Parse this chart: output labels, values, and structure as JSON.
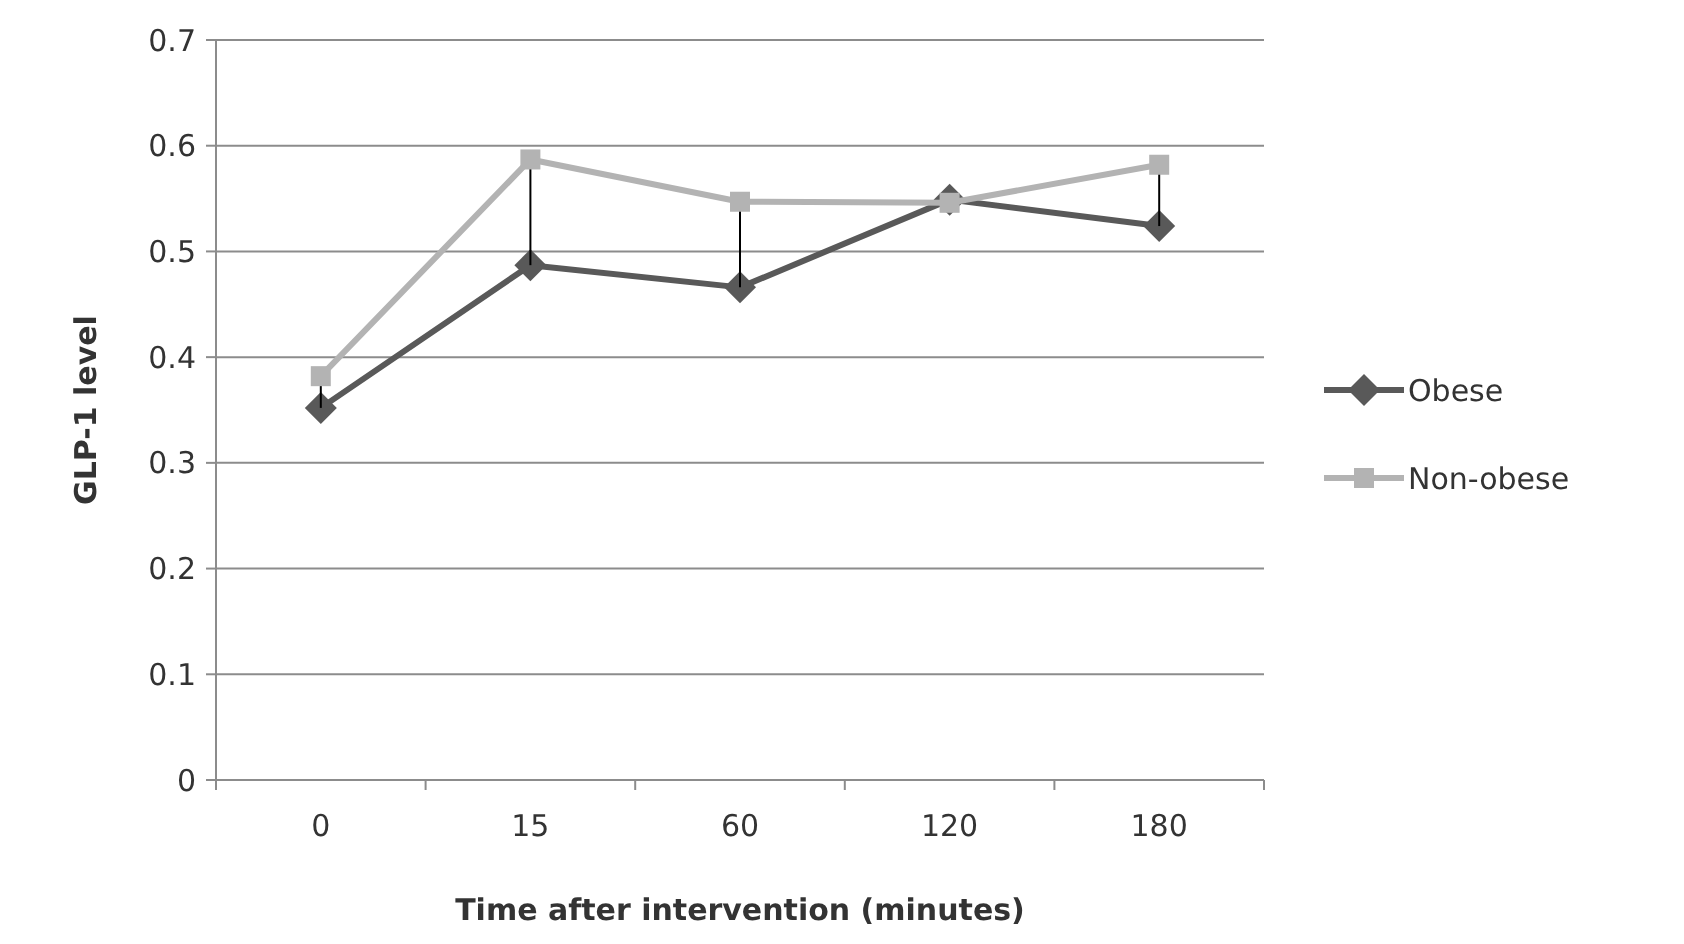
{
  "chart_data": {
    "type": "line",
    "xlabel": "Time after intervention (minutes)",
    "ylabel": "GLP-1 level",
    "categories": [
      "0",
      "15",
      "60",
      "120",
      "180"
    ],
    "series": [
      {
        "name": "Obese",
        "color": "#595959",
        "marker": "diamond",
        "values": [
          0.352,
          0.487,
          0.466,
          0.549,
          0.524
        ]
      },
      {
        "name": "Non-obese",
        "color": "#b3b3b3",
        "marker": "square",
        "values": [
          0.382,
          0.587,
          0.547,
          0.546,
          0.582
        ],
        "errors": [
          [
            0.352,
            0.382
          ],
          [
            0.487,
            0.587
          ],
          [
            0.466,
            0.547
          ],
          null,
          [
            0.524,
            0.582
          ]
        ]
      }
    ],
    "ylim": [
      0,
      0.7
    ],
    "yticks": [
      0,
      0.1,
      0.2,
      0.3,
      0.4,
      0.5,
      0.6,
      0.7
    ],
    "grid": "y",
    "legend": "right",
    "line_style": "solid"
  }
}
